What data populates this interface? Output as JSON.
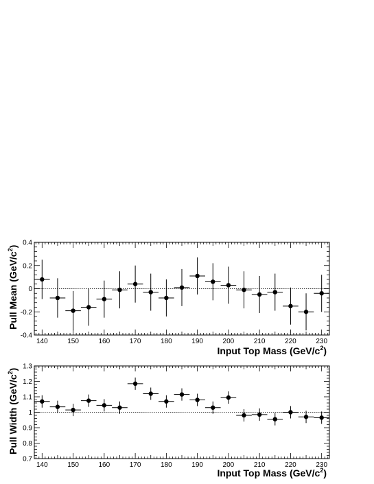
{
  "chart_data": [
    {
      "type": "scatter",
      "title": "",
      "xlabel": "Input Top Mass (GeV/c",
      "xlabel_sup": "2",
      "xlabel_tail": ")",
      "ylabel": "Pull Mean (GeV/c",
      "ylabel_sup": "2",
      "ylabel_tail": ")",
      "xlim": [
        137.5,
        232.5
      ],
      "ylim": [
        -0.4,
        0.4
      ],
      "x_ticks": [
        140,
        150,
        160,
        170,
        180,
        190,
        200,
        210,
        220,
        230
      ],
      "x_tick_labels": [
        "140",
        "150",
        "160",
        "170",
        "180",
        "190",
        "200",
        "210",
        "220",
        "230"
      ],
      "y_ticks": [
        -0.4,
        -0.2,
        0,
        0.2,
        0.4
      ],
      "y_tick_labels": [
        "-0.4",
        "-0.2",
        "0",
        "0.2",
        "0.4"
      ],
      "reference_line": 0,
      "x_halfwidth": 2.5,
      "x": [
        140,
        145,
        150,
        155,
        160,
        165,
        170,
        175,
        180,
        185,
        190,
        195,
        200,
        205,
        210,
        215,
        220,
        225,
        230
      ],
      "y": [
        0.08,
        -0.08,
        -0.19,
        -0.16,
        -0.09,
        -0.01,
        0.04,
        -0.03,
        -0.08,
        0.01,
        0.11,
        0.06,
        0.03,
        -0.01,
        -0.05,
        -0.03,
        -0.15,
        -0.2,
        -0.04
      ],
      "yerr": [
        0.17,
        0.17,
        0.17,
        0.16,
        0.16,
        0.16,
        0.16,
        0.16,
        0.16,
        0.16,
        0.16,
        0.16,
        0.16,
        0.16,
        0.16,
        0.16,
        0.16,
        0.16,
        0.16
      ]
    },
    {
      "type": "scatter",
      "title": "",
      "xlabel": "Input Top Mass (GeV/c",
      "xlabel_sup": "2",
      "xlabel_tail": ")",
      "ylabel": "Pull Width (GeV/c",
      "ylabel_sup": "2",
      "ylabel_tail": ")",
      "xlim": [
        137.5,
        232.5
      ],
      "ylim": [
        0.7,
        1.3
      ],
      "x_ticks": [
        140,
        150,
        160,
        170,
        180,
        190,
        200,
        210,
        220,
        230
      ],
      "x_tick_labels": [
        "140",
        "150",
        "160",
        "170",
        "180",
        "190",
        "200",
        "210",
        "220",
        "230"
      ],
      "y_ticks": [
        0.7,
        0.8,
        0.9,
        1.0,
        1.1,
        1.2,
        1.3
      ],
      "y_tick_labels": [
        "0.7",
        "0.8",
        "0.9",
        "1",
        "1.1",
        "1.2",
        "1.3"
      ],
      "reference_line": 1.0,
      "x_halfwidth": 2.5,
      "x": [
        140,
        145,
        150,
        155,
        160,
        165,
        170,
        175,
        180,
        185,
        190,
        195,
        200,
        205,
        210,
        215,
        220,
        225,
        230
      ],
      "y": [
        1.07,
        1.035,
        1.015,
        1.075,
        1.045,
        1.03,
        1.185,
        1.12,
        1.07,
        1.115,
        1.08,
        1.03,
        1.095,
        0.98,
        0.985,
        0.955,
        1.0,
        0.97,
        0.965
      ],
      "yerr": [
        0.04,
        0.04,
        0.04,
        0.04,
        0.04,
        0.04,
        0.04,
        0.04,
        0.04,
        0.04,
        0.04,
        0.04,
        0.04,
        0.04,
        0.04,
        0.04,
        0.04,
        0.04,
        0.04
      ]
    }
  ]
}
